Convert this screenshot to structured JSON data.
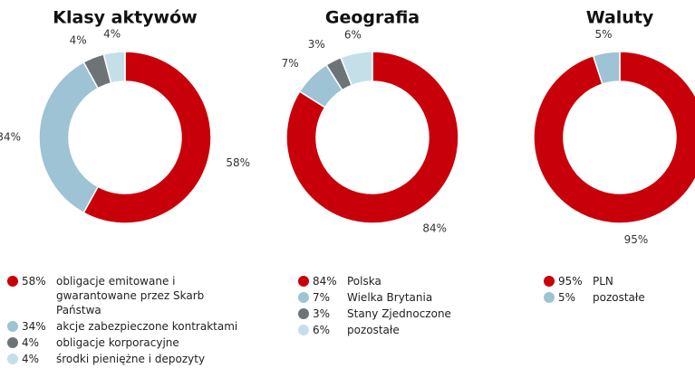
{
  "chart_data": [
    {
      "type": "donut",
      "title": "Klasy aktywów",
      "categories": [
        "obligacje emitowane i gwarantowane przez Skarb Państwa",
        "akcje zabezpieczone kontraktami",
        "obligacje korporacyjne",
        "środki pieniężne i depozyty"
      ],
      "values": [
        58,
        34,
        4,
        4
      ],
      "value_labels": [
        "58%",
        "34%",
        "4%",
        "4%"
      ],
      "colors": [
        "#c8000a",
        "#9dc3d4",
        "#6d7478",
        "#c5dfe8"
      ]
    },
    {
      "type": "donut",
      "title": "Geografia",
      "categories": [
        "Polska",
        "Wielka Brytania",
        "Stany Zjednoczone",
        "pozostałe"
      ],
      "values": [
        84,
        7,
        3,
        6
      ],
      "value_labels": [
        "84%",
        "7%",
        "3%",
        "6%"
      ],
      "colors": [
        "#c8000a",
        "#9dc3d4",
        "#6d7478",
        "#c5dfe8"
      ]
    },
    {
      "type": "donut",
      "title": "Waluty",
      "categories": [
        "PLN",
        "pozostałe"
      ],
      "values": [
        95,
        5
      ],
      "value_labels": [
        "95%",
        "5%"
      ],
      "colors": [
        "#c8000a",
        "#9dc3d4"
      ]
    }
  ]
}
